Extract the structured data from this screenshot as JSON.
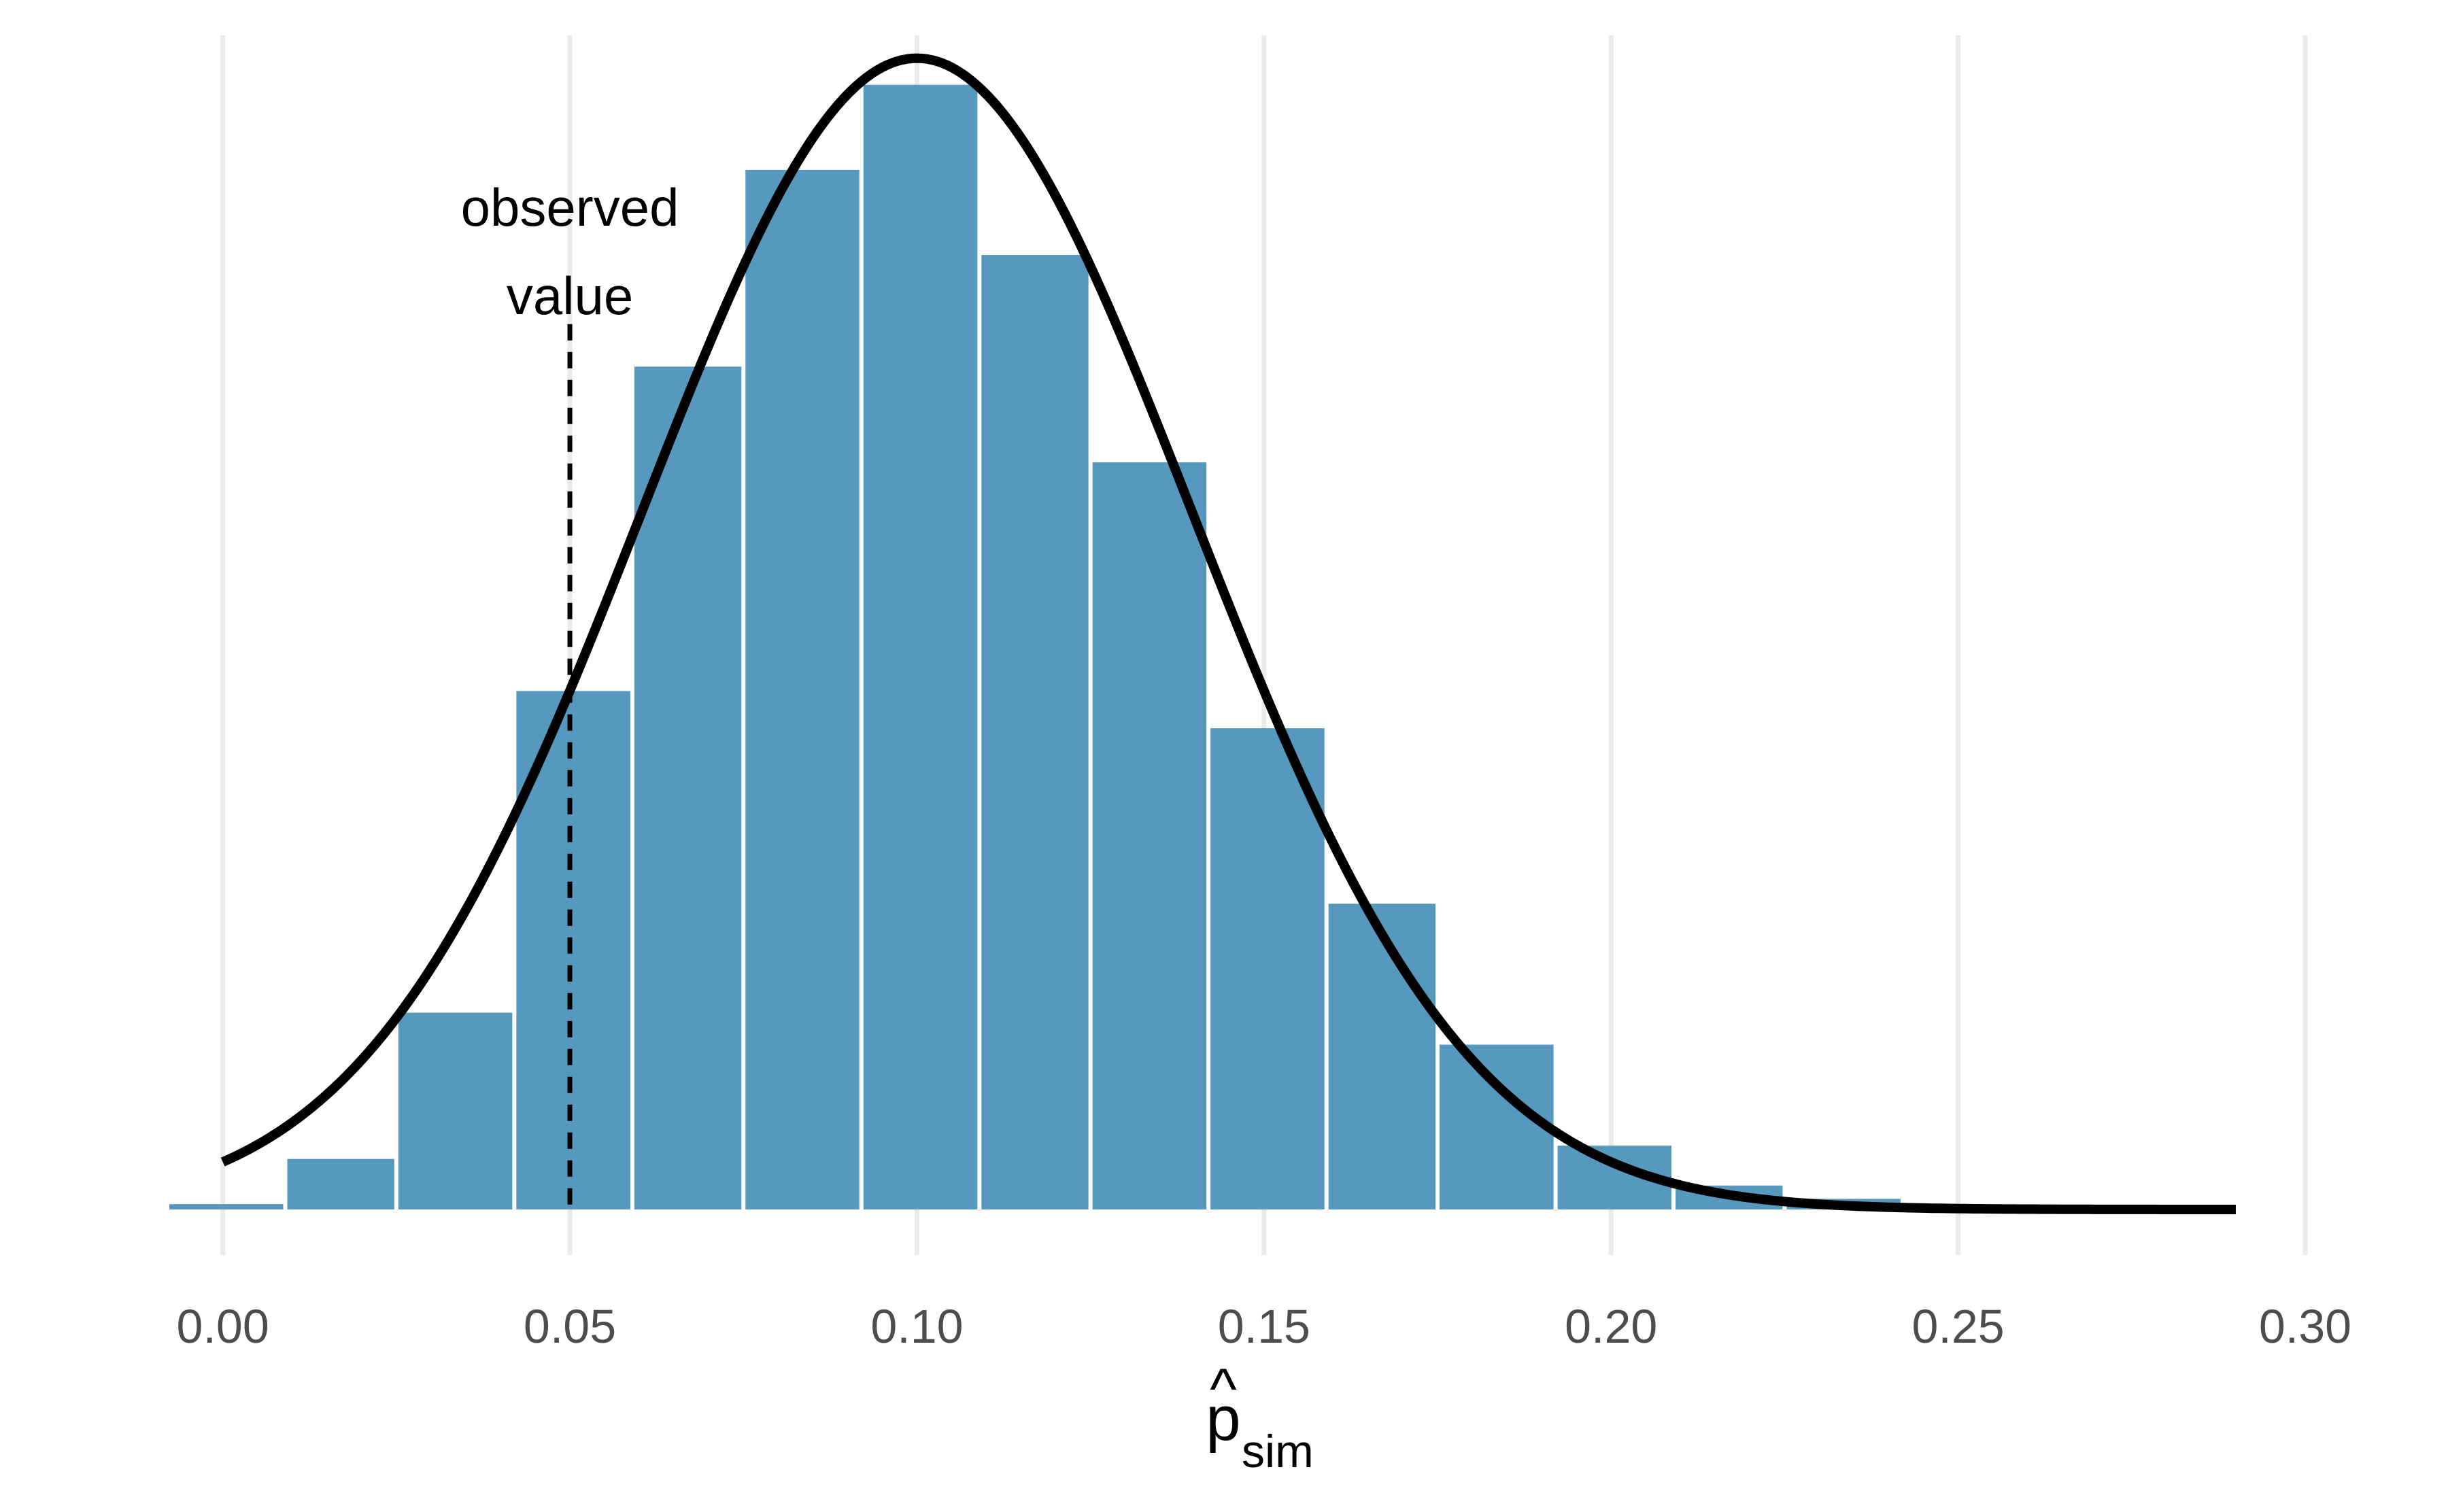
{
  "chart_data": {
    "type": "bar",
    "title": "",
    "xlabel": {
      "base": "p",
      "accent": "^",
      "subscript": "sim"
    },
    "ylabel": "",
    "xlim": [
      -0.008,
      0.3
    ],
    "ylim": [
      0,
      0.2185
    ],
    "x_ticks": [
      0.0,
      0.05,
      0.1,
      0.15,
      0.2,
      0.25,
      0.3
    ],
    "x_tick_labels": [
      "0.00",
      "0.05",
      "0.10",
      "0.15",
      "0.20",
      "0.25",
      "0.30"
    ],
    "grid": "vertical major gridlines",
    "bar_color": "#5799be",
    "bins": [
      {
        "x0": -0.008,
        "x1": 0.009,
        "value": 0.001
      },
      {
        "x0": 0.009,
        "x1": 0.025,
        "value": 0.0095
      },
      {
        "x0": 0.025,
        "x1": 0.042,
        "value": 0.037
      },
      {
        "x0": 0.042,
        "x1": 0.059,
        "value": 0.0975
      },
      {
        "x0": 0.059,
        "x1": 0.075,
        "value": 0.1585
      },
      {
        "x0": 0.075,
        "x1": 0.092,
        "value": 0.1955
      },
      {
        "x0": 0.092,
        "x1": 0.109,
        "value": 0.2115
      },
      {
        "x0": 0.109,
        "x1": 0.125,
        "value": 0.1795
      },
      {
        "x0": 0.125,
        "x1": 0.142,
        "value": 0.1405
      },
      {
        "x0": 0.142,
        "x1": 0.159,
        "value": 0.0905
      },
      {
        "x0": 0.159,
        "x1": 0.175,
        "value": 0.0575
      },
      {
        "x0": 0.175,
        "x1": 0.192,
        "value": 0.031
      },
      {
        "x0": 0.192,
        "x1": 0.209,
        "value": 0.012
      },
      {
        "x0": 0.209,
        "x1": 0.225,
        "value": 0.0045
      },
      {
        "x0": 0.225,
        "x1": 0.242,
        "value": 0.002
      }
    ],
    "normal_curve": {
      "mean": 0.1,
      "sd": 0.0396,
      "peak": 0.2165,
      "x_range": [
        0.0,
        0.29
      ],
      "color": "#000000"
    },
    "annotation": {
      "line1": "observed",
      "line2": "value",
      "x": 0.05,
      "line_top": 0.1665
    }
  }
}
